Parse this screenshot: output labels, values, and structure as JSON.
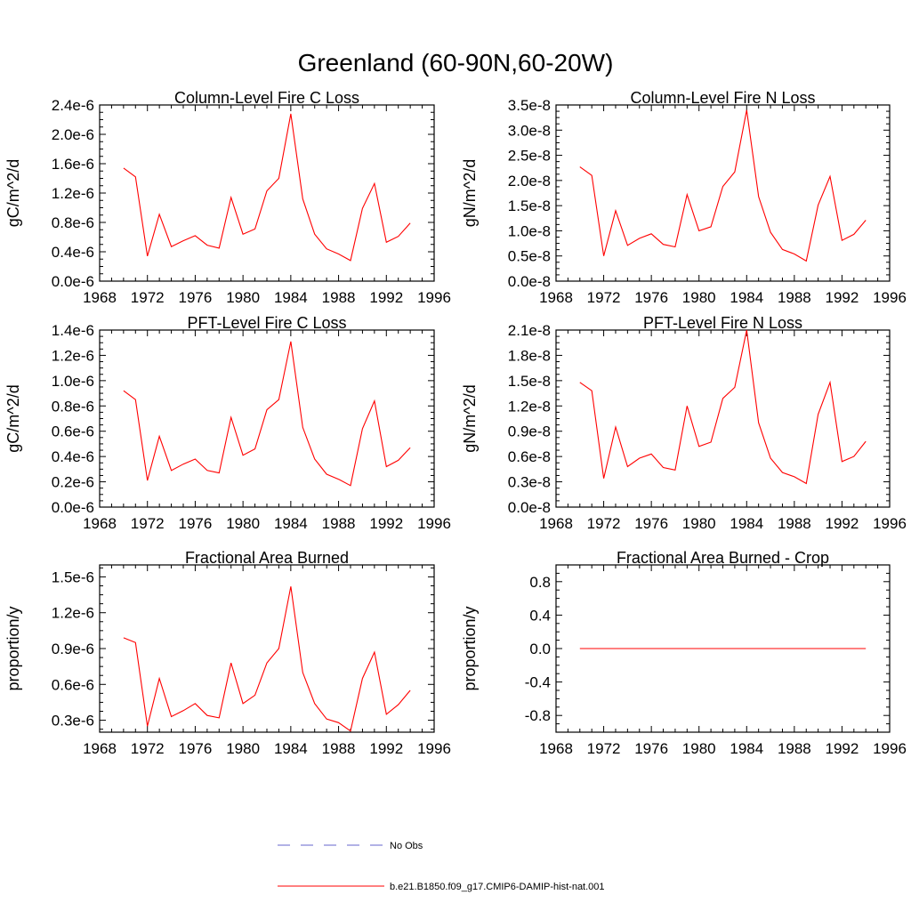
{
  "figure": {
    "title": "Greenland (60-90N,60-20W)",
    "legend": [
      {
        "label": "No Obs",
        "color": "#6666cc",
        "style": "dashed"
      },
      {
        "label": "b.e21.B1850.f09_g17.CMIP6-DAMIP-hist-nat.001",
        "color": "#ff0000",
        "style": "solid"
      }
    ]
  },
  "chart_data": [
    {
      "type": "line",
      "title": "Column-Level Fire C Loss",
      "ylabel": "gC/m^2/d",
      "xlim": [
        1968,
        1996
      ],
      "ylim": [
        0,
        2.4e-06
      ],
      "xticks": [
        1968,
        1972,
        1976,
        1980,
        1984,
        1988,
        1992,
        1996
      ],
      "xtick_labels": [
        "1968",
        "1972",
        "1976",
        "1980",
        "1984",
        "1988",
        "1992",
        "1996"
      ],
      "yticks": [
        0,
        4e-07,
        8e-07,
        1.2e-06,
        1.6e-06,
        2e-06,
        2.4e-06
      ],
      "ytick_labels": [
        "0.0e-6",
        "0.4e-6",
        "0.8e-6",
        "1.2e-6",
        "1.6e-6",
        "2.0e-6",
        "2.4e-6"
      ],
      "x": [
        1970,
        1971,
        1972,
        1973,
        1974,
        1975,
        1976,
        1977,
        1978,
        1979,
        1980,
        1981,
        1982,
        1983,
        1984,
        1985,
        1986,
        1987,
        1988,
        1989,
        1990,
        1991,
        1992,
        1993,
        1994
      ],
      "series": [
        {
          "color": "#ff0000",
          "values": [
            1.54e-06,
            1.42e-06,
            3.4e-07,
            9.1e-07,
            4.7e-07,
            5.5e-07,
            6.2e-07,
            4.9e-07,
            4.5e-07,
            1.14e-06,
            6.4e-07,
            7.1e-07,
            1.23e-06,
            1.4e-06,
            2.28e-06,
            1.12e-06,
            6.4e-07,
            4.4e-07,
            3.7e-07,
            2.8e-07,
            9.9e-07,
            1.33e-06,
            5.3e-07,
            6.1e-07,
            7.9e-07
          ]
        }
      ]
    },
    {
      "type": "line",
      "title": "Column-Level Fire N Loss",
      "ylabel": "gN/m^2/d",
      "xlim": [
        1968,
        1996
      ],
      "ylim": [
        0,
        3.5e-08
      ],
      "xticks": [
        1968,
        1972,
        1976,
        1980,
        1984,
        1988,
        1992,
        1996
      ],
      "xtick_labels": [
        "1968",
        "1972",
        "1976",
        "1980",
        "1984",
        "1988",
        "1992",
        "1996"
      ],
      "yticks": [
        0,
        5e-09,
        1e-08,
        1.5e-08,
        2e-08,
        2.5e-08,
        3e-08,
        3.5e-08
      ],
      "ytick_labels": [
        "0.0e-8",
        "0.5e-8",
        "1.0e-8",
        "1.5e-8",
        "2.0e-8",
        "2.5e-8",
        "3.0e-8",
        "3.5e-8"
      ],
      "x": [
        1970,
        1971,
        1972,
        1973,
        1974,
        1975,
        1976,
        1977,
        1978,
        1979,
        1980,
        1981,
        1982,
        1983,
        1984,
        1985,
        1986,
        1987,
        1988,
        1989,
        1990,
        1991,
        1992,
        1993,
        1994
      ],
      "series": [
        {
          "color": "#ff0000",
          "values": [
            2.27e-08,
            2.1e-08,
            5e-09,
            1.4e-08,
            7.1e-09,
            8.5e-09,
            9.4e-09,
            7.3e-09,
            6.8e-09,
            1.72e-08,
            1e-08,
            1.08e-08,
            1.88e-08,
            2.17e-08,
            3.4e-08,
            1.68e-08,
            9.7e-09,
            6.3e-09,
            5.4e-09,
            4e-09,
            1.51e-08,
            2.08e-08,
            8.1e-09,
            9.3e-09,
            1.21e-08
          ]
        }
      ]
    },
    {
      "type": "line",
      "title": "PFT-Level Fire C Loss",
      "ylabel": "gC/m^2/d",
      "xlim": [
        1968,
        1996
      ],
      "ylim": [
        0,
        1.4e-06
      ],
      "xticks": [
        1968,
        1972,
        1976,
        1980,
        1984,
        1988,
        1992,
        1996
      ],
      "xtick_labels": [
        "1968",
        "1972",
        "1976",
        "1980",
        "1984",
        "1988",
        "1992",
        "1996"
      ],
      "yticks": [
        0,
        2e-07,
        4e-07,
        6e-07,
        8e-07,
        1e-06,
        1.2e-06,
        1.4e-06
      ],
      "ytick_labels": [
        "0.0e-6",
        "0.2e-6",
        "0.4e-6",
        "0.6e-6",
        "0.8e-6",
        "1.0e-6",
        "1.2e-6",
        "1.4e-6"
      ],
      "x": [
        1970,
        1971,
        1972,
        1973,
        1974,
        1975,
        1976,
        1977,
        1978,
        1979,
        1980,
        1981,
        1982,
        1983,
        1984,
        1985,
        1986,
        1987,
        1988,
        1989,
        1990,
        1991,
        1992,
        1993,
        1994
      ],
      "series": [
        {
          "color": "#ff0000",
          "values": [
            9.2e-07,
            8.5e-07,
            2.1e-07,
            5.6e-07,
            2.9e-07,
            3.4e-07,
            3.8e-07,
            2.9e-07,
            2.7e-07,
            7.1e-07,
            4.1e-07,
            4.6e-07,
            7.7e-07,
            8.5e-07,
            1.31e-06,
            6.3e-07,
            3.8e-07,
            2.6e-07,
            2.2e-07,
            1.7e-07,
            6.2e-07,
            8.4e-07,
            3.2e-07,
            3.7e-07,
            4.7e-07
          ]
        }
      ]
    },
    {
      "type": "line",
      "title": "PFT-Level Fire N Loss",
      "ylabel": "gN/m^2/d",
      "xlim": [
        1968,
        1996
      ],
      "ylim": [
        0,
        2.1e-08
      ],
      "xticks": [
        1968,
        1972,
        1976,
        1980,
        1984,
        1988,
        1992,
        1996
      ],
      "xtick_labels": [
        "1968",
        "1972",
        "1976",
        "1980",
        "1984",
        "1988",
        "1992",
        "1996"
      ],
      "yticks": [
        0,
        3e-09,
        6e-09,
        9e-09,
        1.2e-08,
        1.5e-08,
        1.8e-08,
        2.1e-08
      ],
      "ytick_labels": [
        "0.0e-8",
        "0.3e-8",
        "0.6e-8",
        "0.9e-8",
        "1.2e-8",
        "1.5e-8",
        "1.8e-8",
        "2.1e-8"
      ],
      "x": [
        1970,
        1971,
        1972,
        1973,
        1974,
        1975,
        1976,
        1977,
        1978,
        1979,
        1980,
        1981,
        1982,
        1983,
        1984,
        1985,
        1986,
        1987,
        1988,
        1989,
        1990,
        1991,
        1992,
        1993,
        1994
      ],
      "series": [
        {
          "color": "#ff0000",
          "values": [
            1.48e-08,
            1.38e-08,
            3.4e-09,
            9.5e-09,
            4.8e-09,
            5.8e-09,
            6.3e-09,
            4.7e-09,
            4.4e-09,
            1.2e-08,
            7.2e-09,
            7.7e-09,
            1.29e-08,
            1.42e-08,
            2.1e-08,
            1e-08,
            5.8e-09,
            4.1e-09,
            3.6e-09,
            2.8e-09,
            1.1e-08,
            1.48e-08,
            5.4e-09,
            6e-09,
            7.8e-09
          ]
        }
      ]
    },
    {
      "type": "line",
      "title": "Fractional Area Burned",
      "ylabel": "proportion/y",
      "xlim": [
        1968,
        1996
      ],
      "ylim": [
        2e-07,
        1.6e-06
      ],
      "xticks": [
        1968,
        1972,
        1976,
        1980,
        1984,
        1988,
        1992,
        1996
      ],
      "xtick_labels": [
        "1968",
        "1972",
        "1976",
        "1980",
        "1984",
        "1988",
        "1992",
        "1996"
      ],
      "yticks": [
        3e-07,
        6e-07,
        9e-07,
        1.2e-06,
        1.5e-06
      ],
      "ytick_labels": [
        "0.3e-6",
        "0.6e-6",
        "0.9e-6",
        "1.2e-6",
        "1.5e-6"
      ],
      "x": [
        1970,
        1971,
        1972,
        1973,
        1974,
        1975,
        1976,
        1977,
        1978,
        1979,
        1980,
        1981,
        1982,
        1983,
        1984,
        1985,
        1986,
        1987,
        1988,
        1989,
        1990,
        1991,
        1992,
        1993,
        1994
      ],
      "series": [
        {
          "color": "#ff0000",
          "values": [
            9.9e-07,
            9.5e-07,
            2.5e-07,
            6.5e-07,
            3.3e-07,
            3.8e-07,
            4.4e-07,
            3.4e-07,
            3.2e-07,
            7.8e-07,
            4.4e-07,
            5.1e-07,
            7.8e-07,
            9e-07,
            1.42e-06,
            7e-07,
            4.4e-07,
            3.1e-07,
            2.8e-07,
            2.1e-07,
            6.5e-07,
            8.7e-07,
            3.5e-07,
            4.3e-07,
            5.5e-07
          ]
        }
      ]
    },
    {
      "type": "line",
      "title": "Fractional Area Burned - Crop",
      "ylabel": "proportion/y",
      "xlim": [
        1968,
        1996
      ],
      "ylim": [
        -1.0,
        1.0
      ],
      "xticks": [
        1968,
        1972,
        1976,
        1980,
        1984,
        1988,
        1992,
        1996
      ],
      "xtick_labels": [
        "1968",
        "1972",
        "1976",
        "1980",
        "1984",
        "1988",
        "1992",
        "1996"
      ],
      "yticks": [
        -0.8,
        -0.4,
        0.0,
        0.4,
        0.8
      ],
      "ytick_labels": [
        "-0.8",
        "-0.4",
        "0.0",
        "0.4",
        "0.8"
      ],
      "x": [
        1970,
        1971,
        1972,
        1973,
        1974,
        1975,
        1976,
        1977,
        1978,
        1979,
        1980,
        1981,
        1982,
        1983,
        1984,
        1985,
        1986,
        1987,
        1988,
        1989,
        1990,
        1991,
        1992,
        1993,
        1994
      ],
      "series": [
        {
          "color": "#ff0000",
          "values": [
            0,
            0,
            0,
            0,
            0,
            0,
            0,
            0,
            0,
            0,
            0,
            0,
            0,
            0,
            0,
            0,
            0,
            0,
            0,
            0,
            0,
            0,
            0,
            0,
            0
          ]
        }
      ]
    }
  ]
}
